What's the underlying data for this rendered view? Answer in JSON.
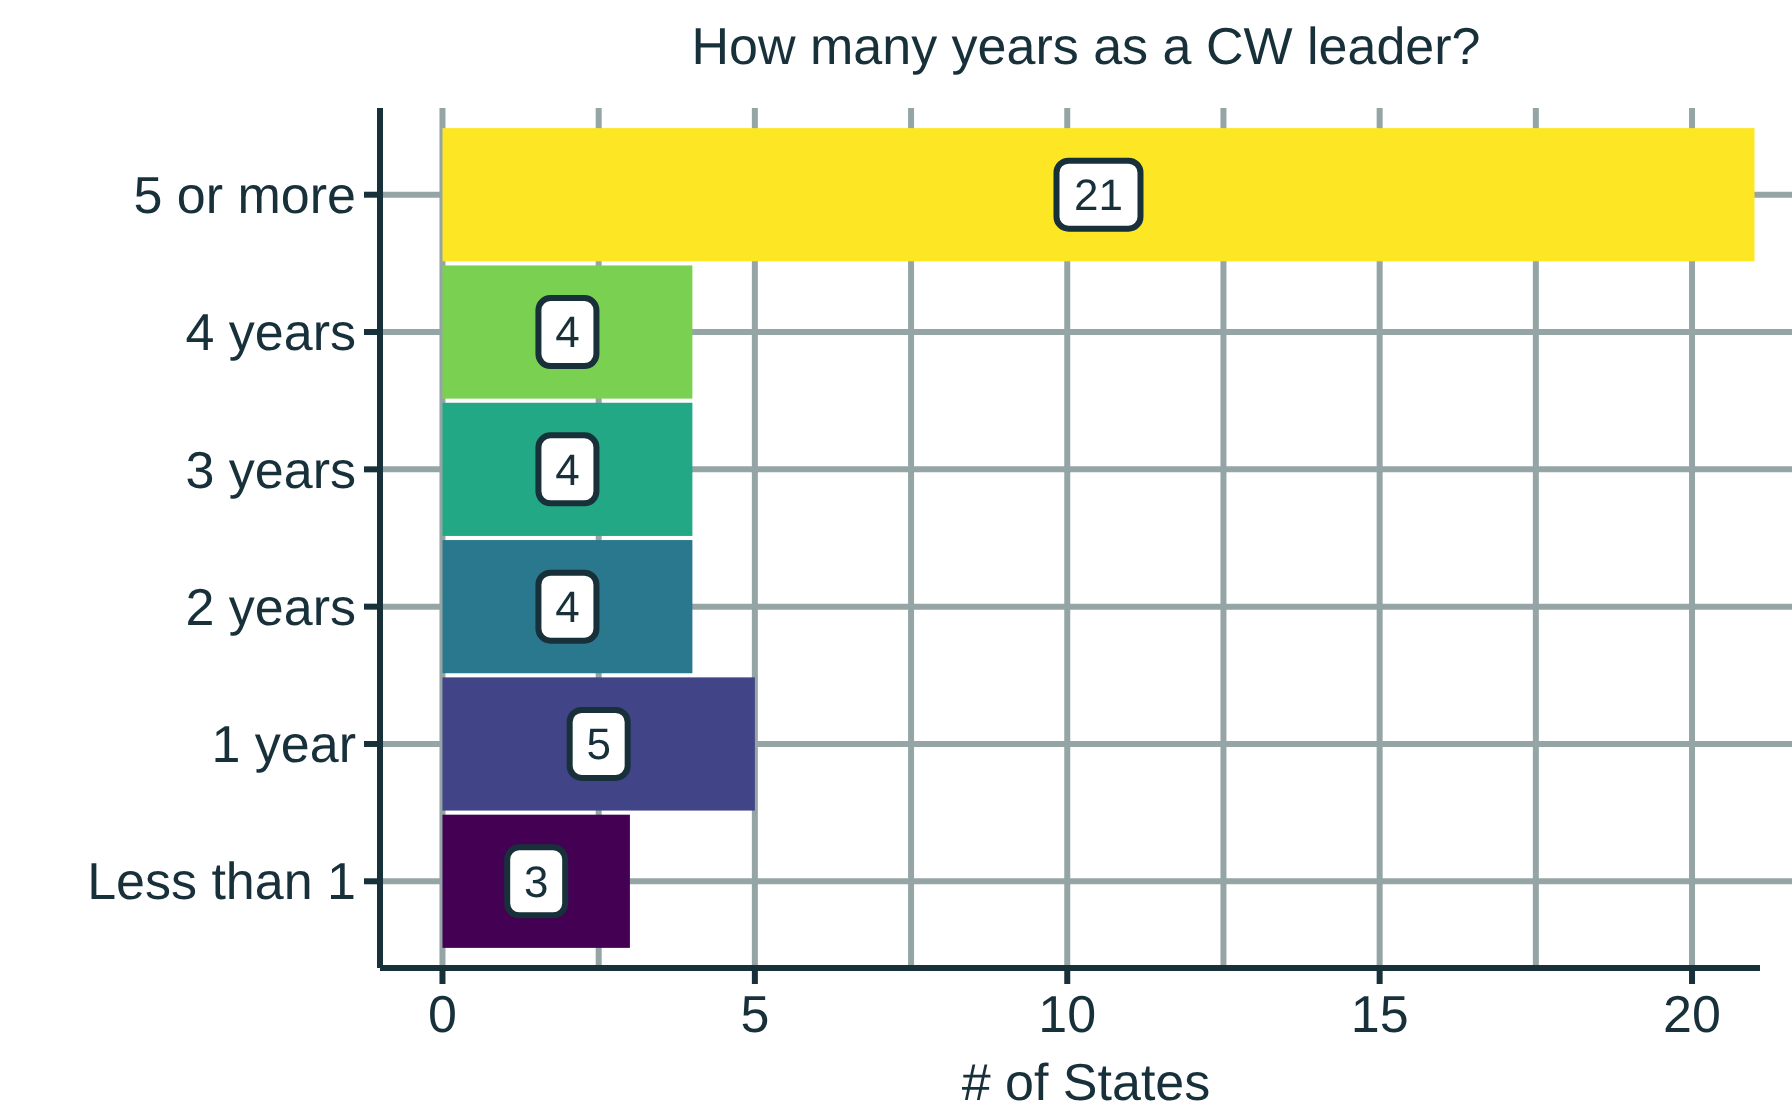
{
  "chart_data": {
    "type": "bar",
    "orientation": "horizontal",
    "title": "How many years as a CW leader?",
    "xlabel": "# of States",
    "categories": [
      "5 or more",
      "4 years",
      "3 years",
      "2 years",
      "1 year",
      "Less than 1"
    ],
    "values": [
      21,
      4,
      4,
      4,
      5,
      3
    ],
    "colors": [
      "#fde725",
      "#7ad151",
      "#22a884",
      "#2a788e",
      "#414487",
      "#440154"
    ],
    "xlim": [
      -1,
      21.6
    ],
    "xticks": [
      0,
      {
        "value": 2.5,
        "label": null
      },
      5,
      {
        "value": 7.5,
        "label": null
      },
      10,
      {
        "value": 12.5,
        "label": null
      },
      15,
      {
        "value": 17.5,
        "label": null
      },
      20
    ],
    "grid": true,
    "data_labels": true
  }
}
